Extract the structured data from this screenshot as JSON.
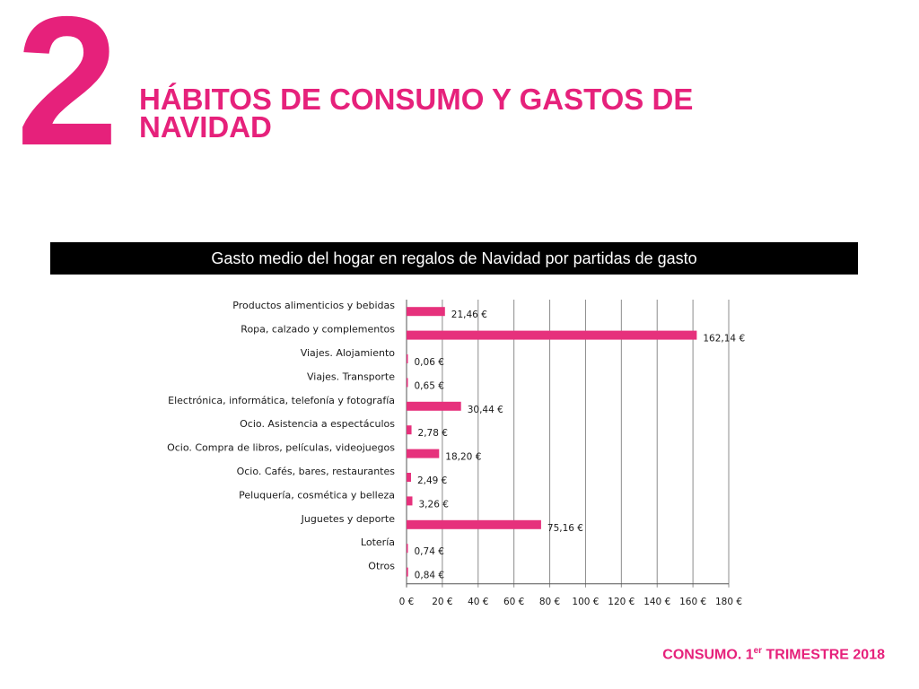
{
  "header": {
    "section_number": "2",
    "section_title": "HÁBITOS DE CONSUMO Y GASTOS DE NAVIDAD"
  },
  "colors": {
    "accent": "#e6217b",
    "bar": "#e6317c",
    "text": "#1a1a1a",
    "grid": "#8c8c8c",
    "title_bar_bg": "#000000"
  },
  "chart_data": {
    "type": "bar",
    "orientation": "horizontal",
    "title": "Gasto medio del hogar en regalos de Navidad por partidas de gasto",
    "categories": [
      "Productos alimenticios y bebidas",
      "Ropa, calzado y complementos",
      "Viajes. Alojamiento",
      "Viajes. Transporte",
      "Electrónica, informática, telefonía y fotografía",
      "Ocio. Asistencia a espectáculos",
      "Ocio. Compra de libros, películas, videojuegos",
      "Ocio. Cafés, bares, restaurantes",
      "Peluquería, cosmética y belleza",
      "Juguetes y deporte",
      "Lotería",
      "Otros"
    ],
    "values": [
      21.46,
      162.14,
      0.06,
      0.65,
      30.44,
      2.78,
      18.2,
      2.49,
      3.26,
      75.16,
      0.74,
      0.84
    ],
    "value_labels": [
      "21,46 €",
      "162,14 €",
      "0,06 €",
      "0,65 €",
      "30,44 €",
      "2,78 €",
      "18,20 €",
      "2,49 €",
      "3,26 €",
      "75,16 €",
      "0,74 €",
      "0,84 €"
    ],
    "xlim": [
      0,
      180
    ],
    "xticks": [
      0,
      20,
      40,
      60,
      80,
      100,
      120,
      140,
      160,
      180
    ],
    "xtick_labels": [
      "0 €",
      "20 €",
      "40 €",
      "60 €",
      "80 €",
      "100 €",
      "120 €",
      "140 €",
      "160 €",
      "180 €"
    ],
    "grid": true
  },
  "footer": {
    "prefix": "CONSUMO. 1",
    "superscript": "er",
    "suffix": " TRIMESTRE 2018"
  }
}
